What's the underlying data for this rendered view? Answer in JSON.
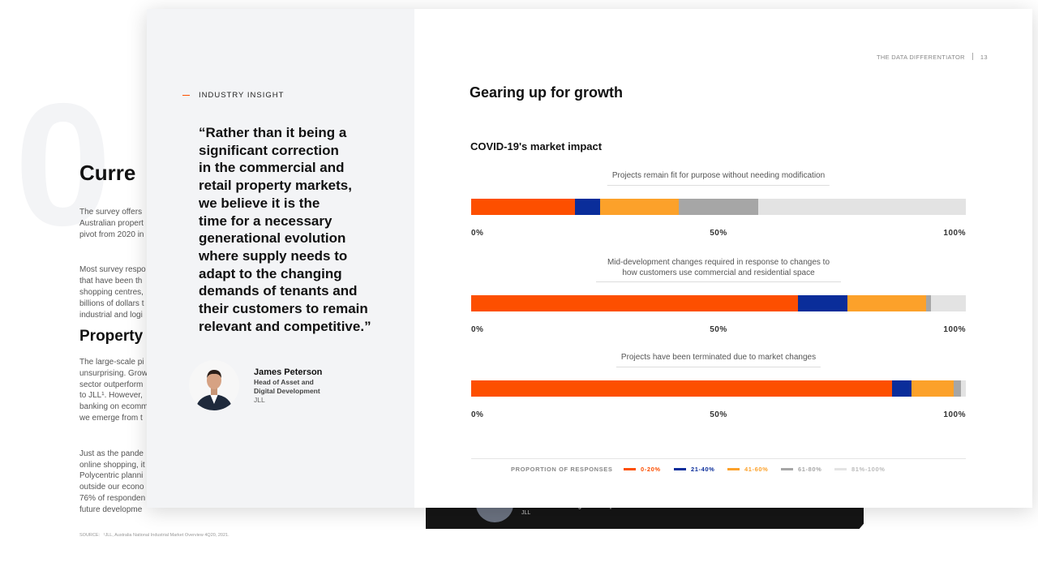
{
  "background_page": {
    "digit": "0",
    "heading_1": "Curre",
    "paragraphs_1": [
      [
        "The survey offers",
        "Australian propert",
        "pivot from 2020 in"
      ],
      [
        "Most survey respo",
        "that have been th",
        "shopping centres,",
        "billions of dollars t",
        "industrial and logi"
      ]
    ],
    "heading_2": "Property",
    "paragraphs_2": [
      [
        "The large-scale pi",
        "unsurprising. Grow",
        "sector outperform",
        "to JLL¹. However,",
        "banking on ecomm",
        "we emerge from t"
      ],
      [
        "Just as the pande",
        "online shopping, it",
        "Polycentric planni",
        "outside our econo",
        "76% of responden",
        "future developme"
      ]
    ],
    "source": "SOURCE:   ¹JLL, Australia National Industrial Market Overview 4Q20, 2021."
  },
  "header": {
    "publication": "THE DATA DIFFERENTIATOR",
    "page_number": "13"
  },
  "insight": {
    "label": "INDUSTRY INSIGHT",
    "quote_lines": [
      "“Rather than it being a",
      "significant correction",
      "in the commercial and",
      "retail property markets,",
      "we believe it is the",
      "time for a necessary",
      "generational evolution",
      "where supply needs to",
      "adapt to the changing",
      "demands of tenants and",
      "their customers to remain",
      "relevant and competitive.”"
    ],
    "name": "James Peterson",
    "role_lines": [
      "Head of Asset and",
      "Digital Development"
    ],
    "company": "JLL"
  },
  "section_title": "Gearing up for growth",
  "dark_strip": {
    "role": "Head of Asset and Digital Development",
    "company": "JLL"
  },
  "chart_data": {
    "type": "stacked_bar_horizontal",
    "title": "COVID-19's market impact",
    "categories": [
      "Projects remain fit for purpose without needing modification",
      "Mid-development changes required in response to changes to how customers use commercial and residential space",
      "Projects have been terminated due to market changes"
    ],
    "series": [
      {
        "name": "0-20%",
        "color": "#fd4f00",
        "values": [
          21,
          66,
          85
        ]
      },
      {
        "name": "21-40%",
        "color": "#0a2d9a",
        "values": [
          5,
          10,
          4
        ]
      },
      {
        "name": "41-60%",
        "color": "#fca12a",
        "values": [
          16,
          16,
          8.5
        ]
      },
      {
        "name": "61-80%",
        "color": "#a6a6a6",
        "values": [
          16,
          1,
          1.5
        ]
      },
      {
        "name": "81%-100%",
        "color": "#e3e3e3",
        "values": [
          42,
          7,
          1
        ]
      }
    ],
    "xlim": [
      0,
      100
    ],
    "xticks": [
      {
        "value": 0,
        "label": "0%"
      },
      {
        "value": 50,
        "label": "50%"
      },
      {
        "value": 100,
        "label": "100%"
      }
    ],
    "legend_title": "PROPORTION OF RESPONSES"
  }
}
